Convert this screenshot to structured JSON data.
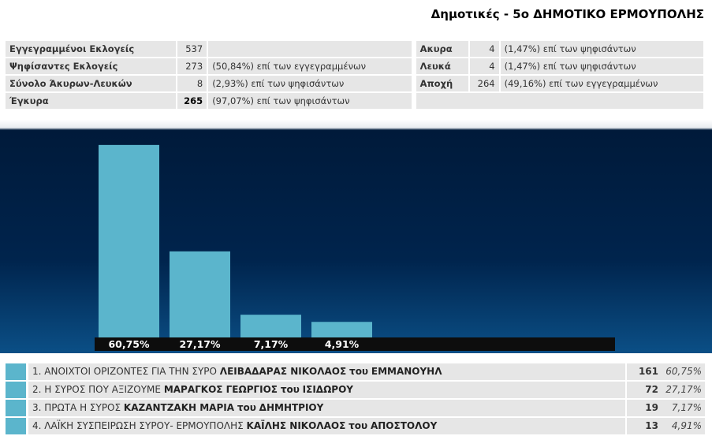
{
  "title": "Δημοτικές - 5ο ΔΗΜΟΤΙΚΟ ΕΡΜΟΥΠΟΛΗΣ",
  "stats": {
    "left": [
      {
        "label": "Εγγεγραμμένοι Εκλογείς",
        "value": "537",
        "note": ""
      },
      {
        "label": "Ψηφίσαντες Εκλογείς",
        "value": "273",
        "note": "(50,84%) επί των εγγεγραμμένων"
      },
      {
        "label": "Σύνολο Άκυρων-Λευκών",
        "value": "8",
        "note": "(2,93%) επί των ψηφισάντων"
      },
      {
        "label": "Έγκυρα",
        "value": "265",
        "note": "(97,07%) επί των ψηφισάντων"
      }
    ],
    "right": [
      {
        "label": "Ακυρα",
        "value": "4",
        "note": "(1,47%) επί των ψηφισάντων"
      },
      {
        "label": "Λευκά",
        "value": "4",
        "note": "(1,47%) επί των ψηφισάντων"
      },
      {
        "label": "Αποχή",
        "value": "264",
        "note": "(49,16%) επί των εγγεγραμμένων"
      }
    ]
  },
  "colors": {
    "bar": "#5bb5cc",
    "label_strip": "#0d0d0d"
  },
  "chart_data": {
    "type": "bar",
    "categories": [
      "1",
      "2",
      "3",
      "4"
    ],
    "values": [
      60.75,
      27.17,
      7.17,
      4.91
    ],
    "labels": [
      "60,75%",
      "27,17%",
      "7,17%",
      "4,91%"
    ],
    "ylim": [
      0,
      65
    ],
    "grid": false
  },
  "results": [
    {
      "num": "1.",
      "list": "ΑΝΟΙΧΤΟΙ ΟΡΙΖΟΝΤΕΣ ΓΙΑ ΤΗΝ ΣΥΡΟ",
      "candidate": "ΛΕΙΒΑΔΑΡΑΣ ΝΙΚΟΛΑΟΣ",
      "tou": "του",
      "father": "ΕΜΜΑΝΟΥΗΛ",
      "votes": "161",
      "pct": "60,75%"
    },
    {
      "num": "2.",
      "list": "Η ΣΥΡΟΣ ΠΟΥ ΑΞΙΖΟΥΜΕ",
      "candidate": "ΜΑΡΑΓΚΟΣ ΓΕΩΡΓΙΟΣ",
      "tou": "του",
      "father": "ΙΣΙΔΩΡΟΥ",
      "votes": "72",
      "pct": "27,17%"
    },
    {
      "num": "3.",
      "list": "ΠΡΩΤΑ Η ΣΥΡΟΣ",
      "candidate": "ΚΑΖΑΝΤΖΑΚΗ ΜΑΡΙΑ",
      "tou": "του",
      "father": "ΔΗΜΗΤΡΙΟΥ",
      "votes": "19",
      "pct": "7,17%"
    },
    {
      "num": "4.",
      "list": "ΛΑΪΚΗ ΣΥΣΠΕΙΡΩΣΗ ΣΥΡΟΥ- ΕΡΜΟΥΠΟΛΗΣ",
      "candidate": "ΚΑΪΛΗΣ ΝΙΚΟΛΑΟΣ",
      "tou": "του",
      "father": "ΑΠΟΣΤΟΛΟΥ",
      "votes": "13",
      "pct": "4,91%"
    }
  ]
}
